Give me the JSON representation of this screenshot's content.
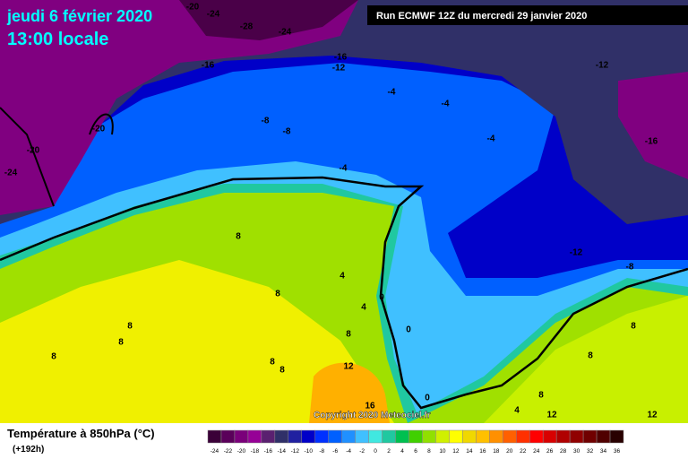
{
  "header": {
    "date": "jeudi 6 février 2020",
    "time": "13:00 locale",
    "run": "Run ECMWF 12Z du mercredi 29 janvier 2020"
  },
  "copyright": "Copyright 2020 Meteociel.fr",
  "map": {
    "contour_labels": [
      -20,
      -24,
      -28,
      -24,
      -16,
      -16,
      -12,
      -12,
      -20,
      -20,
      -24,
      -8,
      -8,
      -4,
      -4,
      -4,
      -16,
      -4,
      8,
      8,
      4,
      0,
      4,
      8,
      8,
      8,
      8,
      8,
      8,
      12,
      16,
      0,
      0,
      -12,
      -8,
      8,
      8,
      8,
      4,
      12,
      12
    ]
  },
  "legend": {
    "title": "Température à 850hPa (°C)",
    "lead": "(+192h)",
    "ticks": [
      -24,
      -22,
      -20,
      -18,
      -16,
      -14,
      -12,
      -10,
      -8,
      -6,
      -4,
      -2,
      0,
      2,
      4,
      6,
      8,
      10,
      12,
      14,
      16,
      18,
      20,
      22,
      24,
      26,
      28,
      30,
      32,
      34,
      36
    ],
    "colors": [
      "#3a0038",
      "#5a005a",
      "#7a007a",
      "#960096",
      "#5a2070",
      "#303068",
      "#2020a0",
      "#0000c8",
      "#0030ff",
      "#0060ff",
      "#2090ff",
      "#40c0ff",
      "#40e8e0",
      "#20c8a0",
      "#00c050",
      "#40d000",
      "#90e000",
      "#d0f000",
      "#ffff00",
      "#f0d800",
      "#ffc000",
      "#ff9000",
      "#ff6000",
      "#ff3000",
      "#ff0000",
      "#d80000",
      "#b00000",
      "#900000",
      "#700000",
      "#500000",
      "#280000"
    ]
  }
}
